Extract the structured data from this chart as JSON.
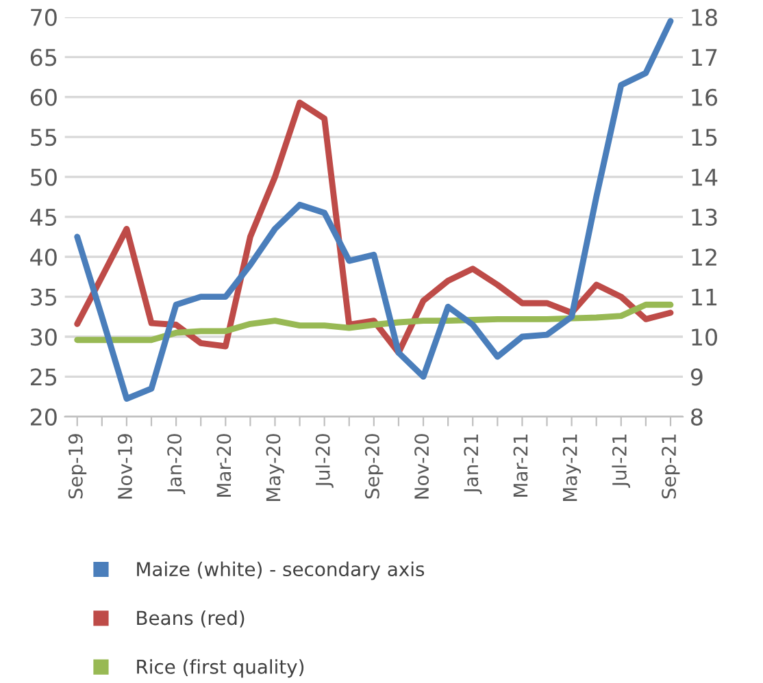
{
  "chart_data": {
    "type": "line",
    "categories": [
      "Sep-19",
      null,
      "Nov-19",
      null,
      "Jan-20",
      null,
      "Mar-20",
      null,
      "May-20",
      null,
      "Jul-20",
      null,
      "Sep-20",
      null,
      "Nov-20",
      null,
      "Jan-21",
      null,
      "Mar-21",
      null,
      "May-21",
      null,
      "Jul-21",
      null,
      "Sep-21"
    ],
    "series": [
      {
        "name": "Maize (white) - secondary axis",
        "color": "#4a7ebb",
        "axis": "y2",
        "values": [
          12.5,
          10.5,
          8.45,
          8.7,
          10.8,
          11.0,
          11.0,
          11.8,
          12.7,
          13.3,
          13.1,
          11.9,
          12.05,
          9.6,
          9.0,
          10.75,
          10.3,
          9.5,
          10.0,
          10.05,
          10.5,
          13.5,
          16.3,
          16.6,
          17.9
        ]
      },
      {
        "name": "Beans (red)",
        "color": "#be4b48",
        "values": [
          31.6,
          37.5,
          43.5,
          31.7,
          31.5,
          29.2,
          28.8,
          42.5,
          50,
          59.3,
          57.3,
          31.5,
          32,
          28,
          34.5,
          37,
          38.5,
          36.5,
          34.2,
          34.2,
          33,
          36.5,
          35,
          32.2,
          33
        ]
      },
      {
        "name": "Rice (first quality)",
        "color": "#98b954",
        "values": [
          29.6,
          29.6,
          29.6,
          29.6,
          30.5,
          30.7,
          30.7,
          31.6,
          32,
          31.4,
          31.4,
          31.1,
          31.5,
          31.8,
          32,
          32,
          32.1,
          32.2,
          32.2,
          32.2,
          32.3,
          32.4,
          32.6,
          34,
          34
        ]
      }
    ],
    "ylim": [
      20,
      70
    ],
    "yticks": [
      20,
      25,
      30,
      35,
      40,
      45,
      50,
      55,
      60,
      65,
      70
    ],
    "y2lim": [
      8,
      18
    ],
    "y2ticks": [
      8,
      9,
      10,
      11,
      12,
      13,
      14,
      15,
      16,
      17,
      18
    ],
    "grid": "y",
    "legend": "bottom",
    "marker": "none",
    "line_style": "solid"
  }
}
